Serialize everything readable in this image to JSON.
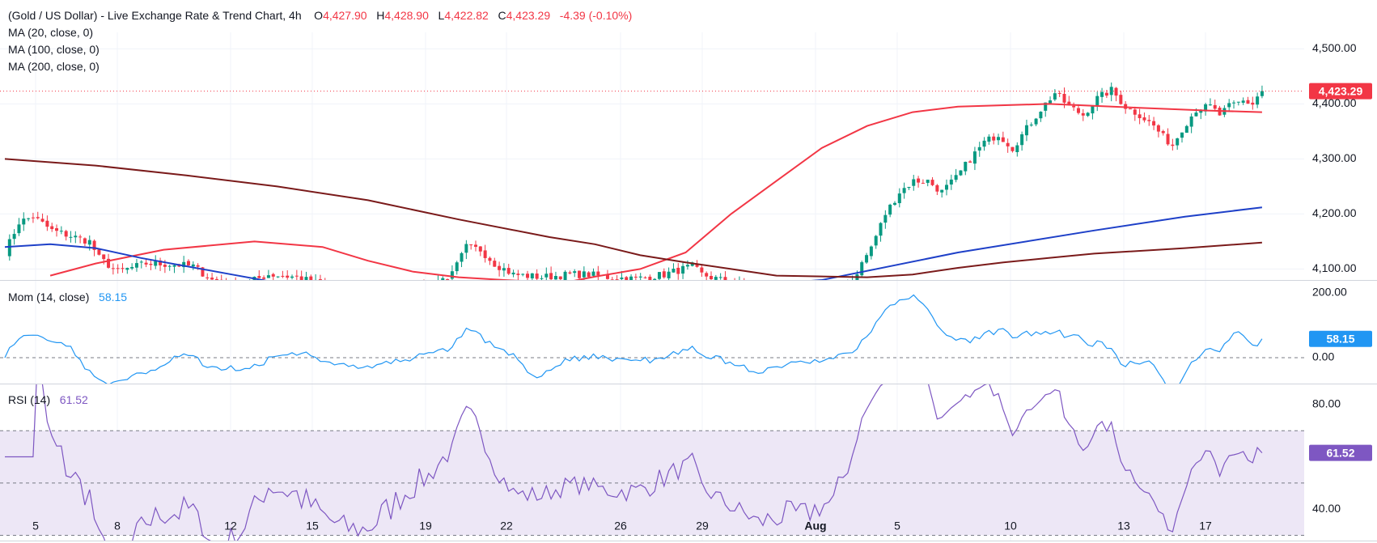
{
  "legend": {
    "title": "(Gold / US Dollar) - Live Exchange Rate & Trend Chart, 4h",
    "o_label": "O",
    "o": "4,427.90",
    "h_label": "H",
    "h": "4,428.90",
    "l_label": "L",
    "l": "4,422.82",
    "c_label": "C",
    "c": "4,423.29",
    "change": "-4.39 (-0.10%)",
    "ma20": "MA (20, close, 0)",
    "ma100": "MA (100, close, 0)",
    "ma200": "MA (200, close, 0)"
  },
  "mom_legend": {
    "label": "Mom (14, close)",
    "value": "58.15"
  },
  "rsi_legend": {
    "label": "RSI (14)",
    "value": "61.52"
  },
  "colors": {
    "up": "#089981",
    "down": "#f23645",
    "ma20": "#f23645",
    "ma100": "#1e40c8",
    "ma200": "#7a1a1a",
    "mom": "#2196f3",
    "rsi": "#7e57c2",
    "rsi_band": "#ede7f6"
  },
  "chart_data": [
    {
      "type": "candlestick",
      "title": "(Gold / US Dollar) - Live Exchange Rate & Trend Chart, 4h",
      "ylim": [
        4080,
        4530
      ],
      "y_ticks": [
        4100,
        4200,
        4300,
        4400,
        4500
      ],
      "y_tick_labels": [
        "4,100.00",
        "4,200.00",
        "4,300.00",
        "4,400.00",
        "4,500.00"
      ],
      "last_price": 4423.29,
      "last_price_label": "4,423.29",
      "x_tick_labels": [
        "5",
        "8",
        "12",
        "15",
        "19",
        "22",
        "26",
        "29",
        "Aug",
        "5",
        "10",
        "13",
        "17"
      ],
      "bar_count": 160,
      "series": [
        {
          "name": "MA (20, close, 0)",
          "type": "line",
          "points": [
            [
              10,
              4088
            ],
            [
              20,
              4110
            ],
            [
              35,
              4135
            ],
            [
              55,
              4150
            ],
            [
              70,
              4140
            ],
            [
              80,
              4115
            ],
            [
              90,
              4095
            ],
            [
              100,
              4085
            ],
            [
              110,
              4080
            ],
            [
              120,
              4076
            ],
            [
              125,
              4078
            ],
            [
              130,
              4086
            ],
            [
              140,
              4100
            ],
            [
              150,
              4130
            ],
            [
              160,
              4200
            ],
            [
              170,
              4260
            ],
            [
              180,
              4320
            ],
            [
              190,
              4360
            ],
            [
              200,
              4385
            ],
            [
              210,
              4395
            ],
            [
              230,
              4400
            ],
            [
              250,
              4393
            ],
            [
              265,
              4388
            ],
            [
              277,
              4385
            ]
          ]
        },
        {
          "name": "MA (100, close, 0)",
          "type": "line",
          "points": [
            [
              0,
              4140
            ],
            [
              10,
              4145
            ],
            [
              20,
              4138
            ],
            [
              30,
              4120
            ],
            [
              40,
              4105
            ],
            [
              50,
              4090
            ],
            [
              60,
              4075
            ],
            [
              80,
              4060
            ],
            [
              100,
              4052
            ],
            [
              120,
              4050
            ],
            [
              140,
              4055
            ],
            [
              180,
              4080
            ],
            [
              210,
              4130
            ],
            [
              240,
              4170
            ],
            [
              260,
              4195
            ],
            [
              277,
              4212
            ]
          ]
        },
        {
          "name": "MA (200, close, 0)",
          "type": "line",
          "points": [
            [
              0,
              4300
            ],
            [
              20,
              4288
            ],
            [
              40,
              4270
            ],
            [
              60,
              4250
            ],
            [
              80,
              4225
            ],
            [
              100,
              4190
            ],
            [
              120,
              4158
            ],
            [
              130,
              4145
            ],
            [
              140,
              4125
            ],
            [
              150,
              4112
            ],
            [
              160,
              4100
            ],
            [
              170,
              4088
            ],
            [
              190,
              4085
            ],
            [
              200,
              4090
            ],
            [
              210,
              4102
            ],
            [
              220,
              4112
            ],
            [
              230,
              4120
            ],
            [
              240,
              4128
            ],
            [
              260,
              4138
            ],
            [
              277,
              4148
            ]
          ]
        }
      ]
    },
    {
      "type": "line",
      "title": "Mom (14, close)",
      "ylim": [
        -80,
        240
      ],
      "y_ticks": [
        0,
        200
      ],
      "y_tick_labels": [
        "0.00",
        "200.00"
      ],
      "last_value": 58.15,
      "last_value_label": "58.15",
      "reference_line": 0
    },
    {
      "type": "line",
      "title": "RSI (14)",
      "ylim": [
        28,
        88
      ],
      "y_ticks": [
        40,
        80
      ],
      "y_tick_labels": [
        "40.00",
        "80.00"
      ],
      "band": [
        30,
        70
      ],
      "midline": 50,
      "last_value": 61.52,
      "last_value_label": "61.52"
    }
  ]
}
